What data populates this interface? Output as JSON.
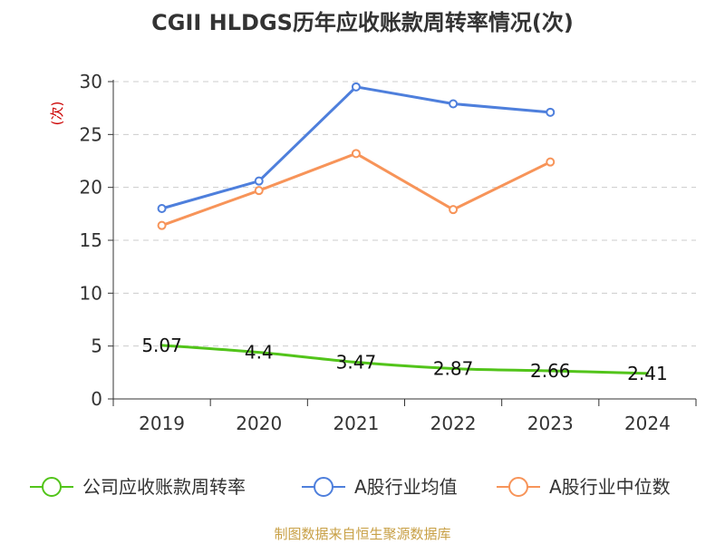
{
  "chart_data": {
    "type": "line",
    "title": "CGII HLDGS历年应收账款周转率情况(次)",
    "ylabel": "(次)",
    "xlabel": "",
    "ylim": [
      0,
      30
    ],
    "yticks": [
      0,
      5,
      10,
      15,
      20,
      25,
      30
    ],
    "grid": true,
    "legend_position": "bottom",
    "categories": [
      "2019",
      "2020",
      "2021",
      "2022",
      "2023",
      "2024"
    ],
    "series": [
      {
        "name": "公司应收账款周转率",
        "color": "#52c41a",
        "values": [
          5.07,
          4.4,
          3.47,
          2.87,
          2.66,
          2.41
        ],
        "data_labels": [
          "5.07",
          "4.4",
          "3.47",
          "2.87",
          "2.66",
          "2.41"
        ],
        "smooth": true,
        "show_markers": false
      },
      {
        "name": "A股行业均值",
        "color": "#4e7fdc",
        "values": [
          18.0,
          20.6,
          29.5,
          27.9,
          27.1,
          null
        ],
        "show_markers": true
      },
      {
        "name": "A股行业中位数",
        "color": "#f79459",
        "values": [
          16.4,
          19.7,
          23.2,
          17.9,
          22.4,
          null
        ],
        "show_markers": true
      }
    ]
  },
  "source": "制图数据来自恒生聚源数据库"
}
